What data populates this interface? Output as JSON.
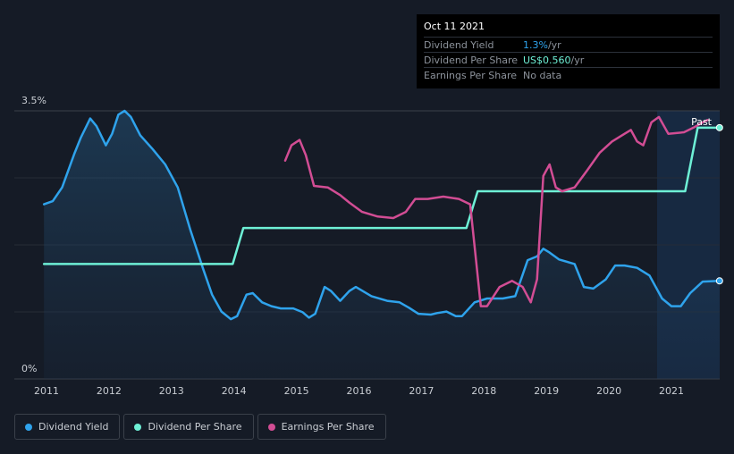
{
  "tooltip": {
    "date": "Oct 11 2021",
    "rows": [
      {
        "label": "Dividend Yield",
        "value": "1.3%",
        "unit": " /yr"
      },
      {
        "label": "Dividend Per Share",
        "value": "US$0.560",
        "unit": " /yr"
      },
      {
        "label": "Earnings Per Share",
        "value": "No data",
        "unit": ""
      }
    ]
  },
  "legend": [
    {
      "label": "Dividend Yield",
      "color": "#2fa3ec"
    },
    {
      "label": "Dividend Per Share",
      "color": "#6ef0d6"
    },
    {
      "label": "Earnings Per Share",
      "color": "#d24d94"
    }
  ],
  "chart_data": {
    "type": "line",
    "x_ticks": [
      "2011",
      "2012",
      "2013",
      "2014",
      "2015",
      "2016",
      "2017",
      "2018",
      "2019",
      "2020",
      "2021"
    ],
    "y_ticks": [
      "3.5%",
      "0%"
    ],
    "ylim": [
      0,
      3.5
    ],
    "past_label": "Past",
    "series": [
      {
        "name": "Dividend Yield",
        "color": "#2fa3ec",
        "filled": true,
        "points": [
          [
            2010.96,
            2.28
          ],
          [
            2011.1,
            2.32
          ],
          [
            2011.25,
            2.5
          ],
          [
            2011.45,
            2.95
          ],
          [
            2011.55,
            3.15
          ],
          [
            2011.7,
            3.4
          ],
          [
            2011.8,
            3.3
          ],
          [
            2011.95,
            3.05
          ],
          [
            2012.05,
            3.2
          ],
          [
            2012.15,
            3.45
          ],
          [
            2012.25,
            3.5
          ],
          [
            2012.35,
            3.42
          ],
          [
            2012.5,
            3.18
          ],
          [
            2012.7,
            3.0
          ],
          [
            2012.9,
            2.8
          ],
          [
            2013.1,
            2.5
          ],
          [
            2013.3,
            1.95
          ],
          [
            2013.5,
            1.45
          ],
          [
            2013.65,
            1.1
          ],
          [
            2013.8,
            0.88
          ],
          [
            2013.95,
            0.78
          ],
          [
            2014.05,
            0.82
          ],
          [
            2014.2,
            1.1
          ],
          [
            2014.3,
            1.12
          ],
          [
            2014.45,
            1.0
          ],
          [
            2014.6,
            0.95
          ],
          [
            2014.75,
            0.92
          ],
          [
            2014.95,
            0.92
          ],
          [
            2015.1,
            0.87
          ],
          [
            2015.2,
            0.8
          ],
          [
            2015.3,
            0.85
          ],
          [
            2015.45,
            1.2
          ],
          [
            2015.55,
            1.15
          ],
          [
            2015.7,
            1.02
          ],
          [
            2015.85,
            1.15
          ],
          [
            2015.95,
            1.2
          ],
          [
            2016.2,
            1.08
          ],
          [
            2016.45,
            1.02
          ],
          [
            2016.65,
            1.0
          ],
          [
            2016.8,
            0.93
          ],
          [
            2016.95,
            0.85
          ],
          [
            2017.15,
            0.84
          ],
          [
            2017.25,
            0.86
          ],
          [
            2017.4,
            0.88
          ],
          [
            2017.55,
            0.82
          ],
          [
            2017.65,
            0.82
          ],
          [
            2017.85,
            1.0
          ],
          [
            2018.05,
            1.05
          ],
          [
            2018.3,
            1.05
          ],
          [
            2018.5,
            1.08
          ],
          [
            2018.7,
            1.55
          ],
          [
            2018.85,
            1.6
          ],
          [
            2018.95,
            1.7
          ],
          [
            2019.05,
            1.65
          ],
          [
            2019.2,
            1.56
          ],
          [
            2019.45,
            1.5
          ],
          [
            2019.6,
            1.2
          ],
          [
            2019.75,
            1.18
          ],
          [
            2019.95,
            1.3
          ],
          [
            2020.1,
            1.48
          ],
          [
            2020.25,
            1.48
          ],
          [
            2020.45,
            1.45
          ],
          [
            2020.65,
            1.35
          ],
          [
            2020.85,
            1.05
          ],
          [
            2021.0,
            0.95
          ],
          [
            2021.15,
            0.95
          ],
          [
            2021.3,
            1.12
          ],
          [
            2021.5,
            1.27
          ],
          [
            2021.77,
            1.28
          ]
        ]
      },
      {
        "name": "Dividend Per Share",
        "color": "#6ef0d6",
        "filled": false,
        "points": [
          [
            2010.96,
            1.5
          ],
          [
            2013.98,
            1.5
          ],
          [
            2014.15,
            1.97
          ],
          [
            2017.72,
            1.97
          ],
          [
            2017.9,
            2.45
          ],
          [
            2021.22,
            2.45
          ],
          [
            2021.42,
            3.28
          ],
          [
            2021.77,
            3.28
          ]
        ]
      },
      {
        "name": "Earnings Per Share",
        "color": "#d24d94",
        "filled": false,
        "points": [
          [
            2014.82,
            2.85
          ],
          [
            2014.92,
            3.05
          ],
          [
            2015.05,
            3.12
          ],
          [
            2015.15,
            2.92
          ],
          [
            2015.28,
            2.52
          ],
          [
            2015.5,
            2.5
          ],
          [
            2015.7,
            2.4
          ],
          [
            2015.85,
            2.3
          ],
          [
            2016.05,
            2.18
          ],
          [
            2016.3,
            2.12
          ],
          [
            2016.55,
            2.1
          ],
          [
            2016.75,
            2.18
          ],
          [
            2016.9,
            2.35
          ],
          [
            2017.1,
            2.35
          ],
          [
            2017.35,
            2.38
          ],
          [
            2017.6,
            2.35
          ],
          [
            2017.78,
            2.28
          ],
          [
            2017.88,
            1.5
          ],
          [
            2017.95,
            0.95
          ],
          [
            2018.05,
            0.95
          ],
          [
            2018.25,
            1.2
          ],
          [
            2018.45,
            1.28
          ],
          [
            2018.62,
            1.2
          ],
          [
            2018.75,
            1.0
          ],
          [
            2018.85,
            1.3
          ],
          [
            2018.95,
            2.65
          ],
          [
            2019.05,
            2.8
          ],
          [
            2019.15,
            2.5
          ],
          [
            2019.25,
            2.45
          ],
          [
            2019.45,
            2.5
          ],
          [
            2019.65,
            2.72
          ],
          [
            2019.85,
            2.95
          ],
          [
            2020.05,
            3.1
          ],
          [
            2020.25,
            3.2
          ],
          [
            2020.35,
            3.25
          ],
          [
            2020.45,
            3.1
          ],
          [
            2020.55,
            3.05
          ],
          [
            2020.68,
            3.35
          ],
          [
            2020.8,
            3.42
          ],
          [
            2020.95,
            3.2
          ],
          [
            2021.2,
            3.22
          ],
          [
            2021.35,
            3.28
          ],
          [
            2021.5,
            3.35
          ],
          [
            2021.58,
            3.38
          ]
        ]
      }
    ]
  }
}
